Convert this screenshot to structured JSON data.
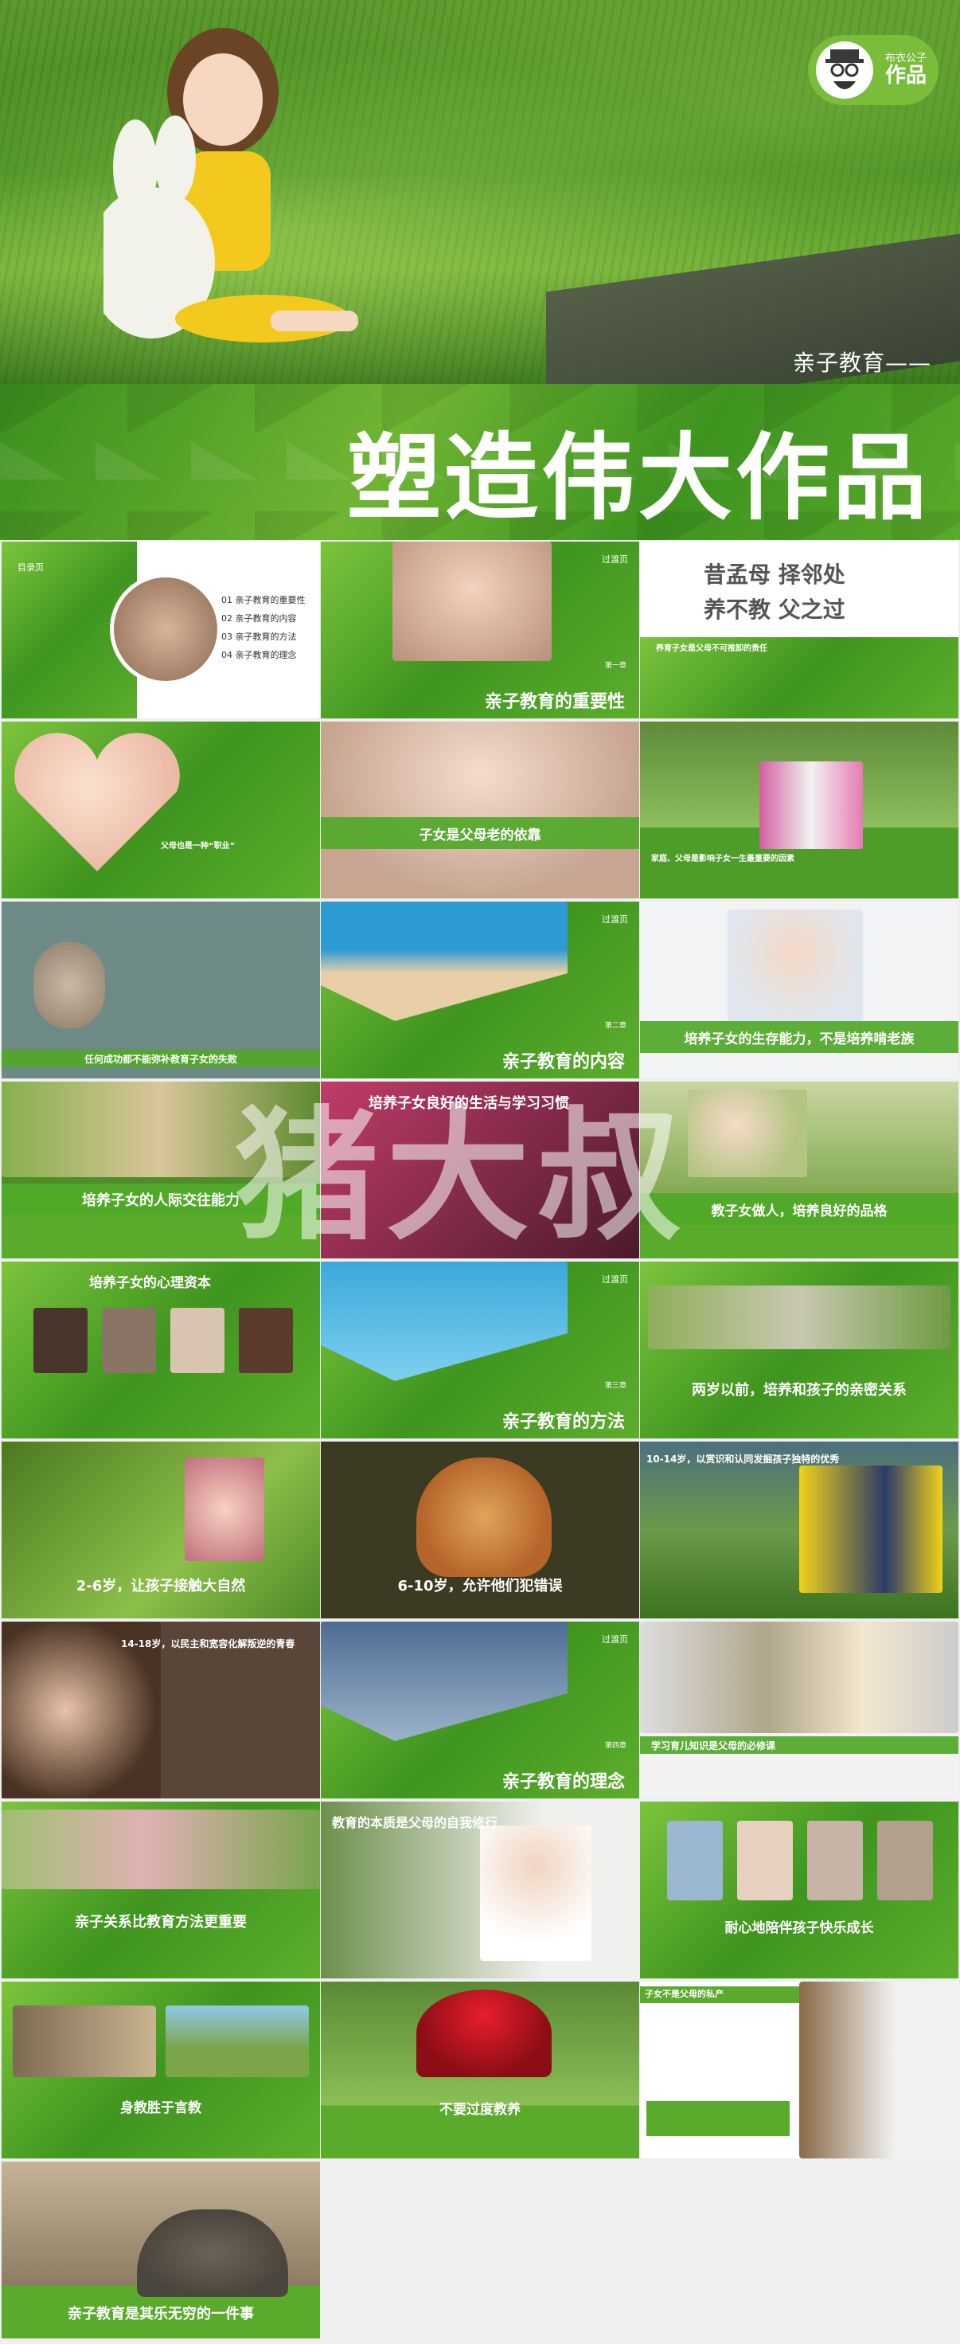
{
  "hero": {
    "subtitle": "亲子教育——",
    "logo_small": "布衣公子",
    "logo_big": "作品"
  },
  "band": {
    "title": "塑造伟大作品"
  },
  "tiles": {
    "t1": {
      "header": "目录页",
      "items": [
        "01  亲子教育的重要性",
        "02  亲子教育的内容",
        "03  亲子教育的方法",
        "04  亲子教育的理念"
      ]
    },
    "t2": {
      "badge": "过渡页",
      "caption": "亲子教育的重要性",
      "part": "第一章"
    },
    "t3": {
      "poem1": "昔孟母  择邻处",
      "poem2": "养不教  父之过",
      "sub": "养育子女是父母不可推卸的责任"
    },
    "t4": {
      "caption": "父母也是一种“职业”"
    },
    "t5": {
      "caption": "子女是父母老的依靠"
    },
    "t6": {
      "caption": "家庭、父母是影响子女一生最重要的因素"
    },
    "t7": {
      "caption": "任何成功都不能弥补教育子女的失败"
    },
    "t8": {
      "badge": "过渡页",
      "caption": "亲子教育的内容",
      "part": "第二章"
    },
    "t9": {
      "caption": "培养子女的生存能力，不是培养啃老族"
    },
    "t10": {
      "caption": "培养子女的人际交往能力"
    },
    "t11": {
      "caption": "培养子女良好的生活与学习习惯"
    },
    "t12": {
      "caption": "教子女做人，培养良好的品格"
    },
    "t13": {
      "caption": "培养子女的心理资本"
    },
    "t14": {
      "badge": "过渡页",
      "caption": "亲子教育的方法",
      "part": "第三章"
    },
    "t15": {
      "caption": "两岁以前，培养和孩子的亲密关系"
    },
    "t16": {
      "caption": "2-6岁，让孩子接触大自然"
    },
    "t17": {
      "caption": "6-10岁，允许他们犯错误"
    },
    "t18": {
      "caption": "10-14岁，以赏识和认同发掘孩子独特的优秀"
    },
    "t19": {
      "caption": "14-18岁，以民主和宽容化解叛逆的青春"
    },
    "t20": {
      "badge": "过渡页",
      "caption": "亲子教育的理念",
      "part": "第四章"
    },
    "t21": {
      "caption": "学习育儿知识是父母的必修课"
    },
    "t22": {
      "caption": "亲子关系比教育方法更重要"
    },
    "t23": {
      "caption": "教育的本质是父母的自我修行"
    },
    "t24": {
      "caption": "耐心地陪伴孩子快乐成长"
    },
    "t25": {
      "caption": "身教胜于言教"
    },
    "t26": {
      "caption": "不要过度教养"
    },
    "t27": {
      "caption": "子女不是父母的私产"
    },
    "t28": {
      "caption": "亲子教育是其乐无穷的一件事"
    }
  },
  "watermark": "猪大叔",
  "colors": {
    "primary": "#5aab2c",
    "dark": "#3b8a1c",
    "light": "#8ccc4a"
  }
}
